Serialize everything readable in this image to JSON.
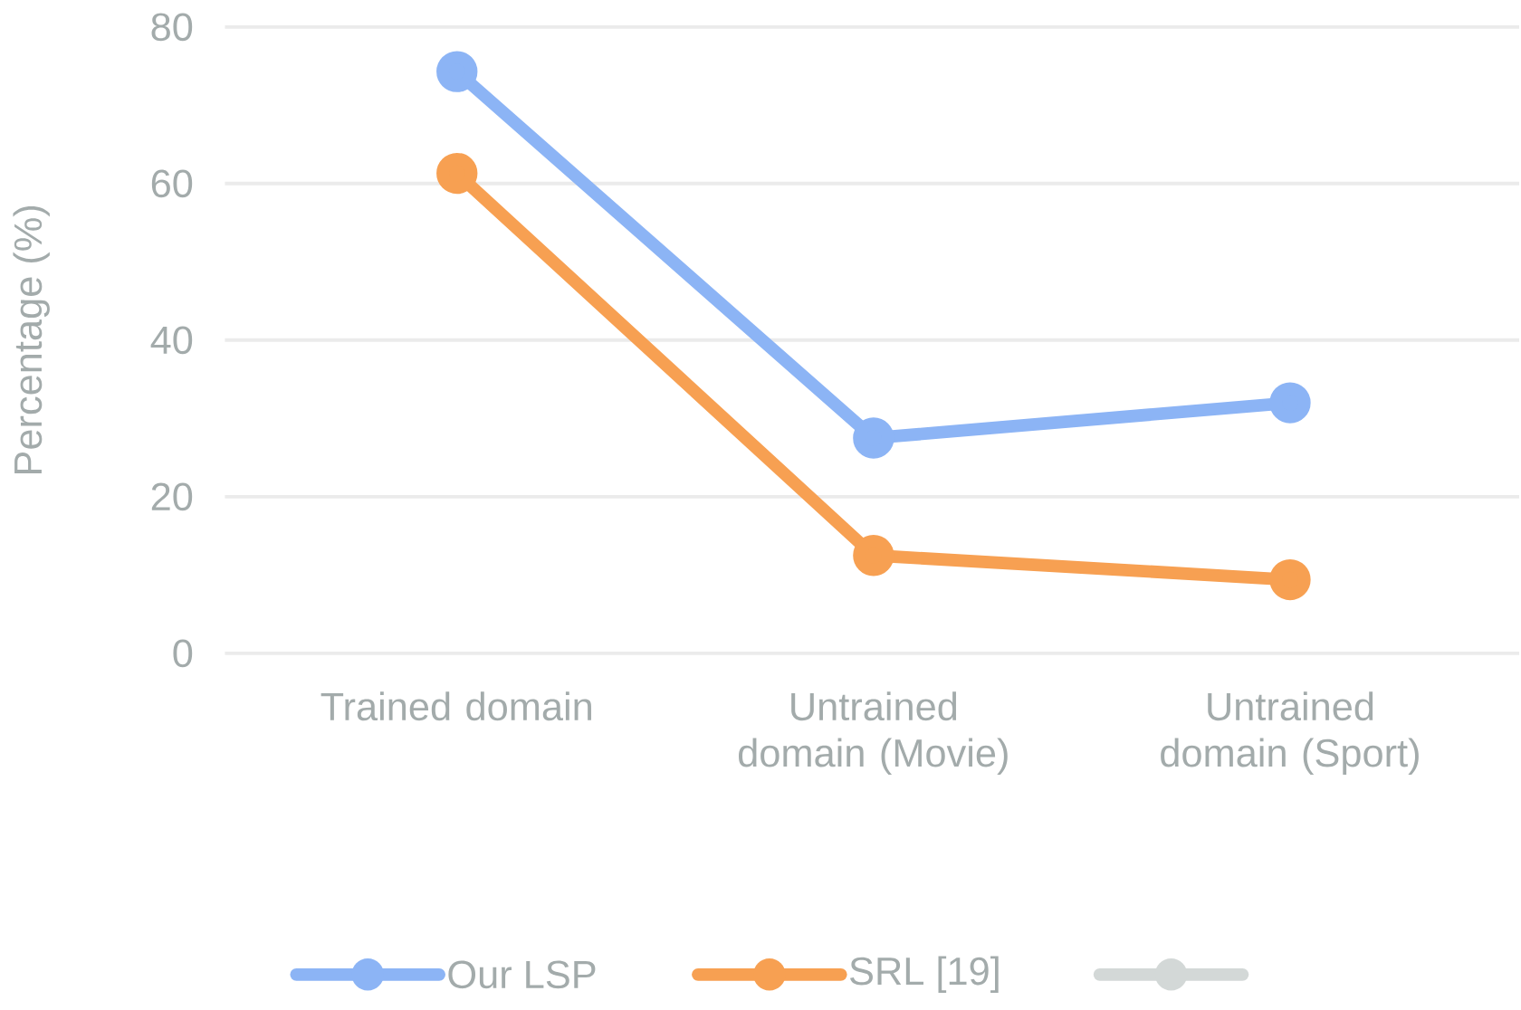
{
  "chart_data": {
    "type": "line",
    "ylabel": "Percentage (%)",
    "categories": [
      "Trained domain",
      "Untrained domain (Movie)",
      "Untrained domain (Sport)"
    ],
    "series": [
      {
        "name": "Our LSP",
        "color": "#8cb4f5",
        "values": [
          74.3,
          27.5,
          32
        ]
      },
      {
        "name": "SRL [19]",
        "color": "#f7a052",
        "values": [
          61.3,
          12.5,
          9.4
        ]
      },
      {
        "color": "#d3d8d7",
        "values": [
          null,
          null,
          null
        ]
      }
    ],
    "ylim": [
      0,
      80
    ],
    "yticks": [
      0,
      20,
      40,
      60,
      80
    ],
    "grid": "y",
    "legend": "bottom",
    "marker": "circle",
    "line_style": "solid"
  }
}
